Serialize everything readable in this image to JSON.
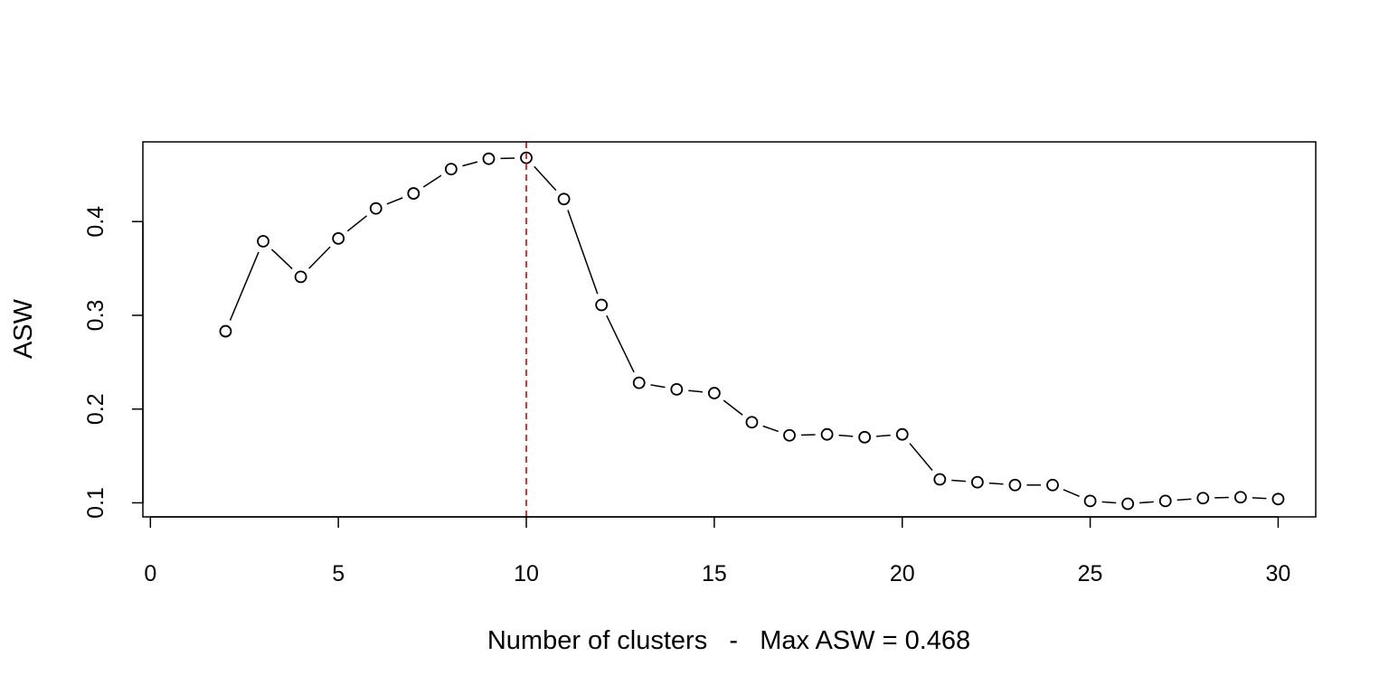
{
  "chart_data": {
    "type": "line",
    "title": "",
    "xlabel": "Number of clusters   -   Max ASW = 0.468",
    "ylabel": "ASW",
    "xlim": [
      -0.2,
      31.0
    ],
    "ylim": [
      0.085,
      0.485
    ],
    "x_ticks": [
      0,
      5,
      10,
      15,
      20,
      25,
      30
    ],
    "y_ticks": [
      0.1,
      0.2,
      0.3,
      0.4
    ],
    "x_tick_labels": [
      "0",
      "5",
      "10",
      "15",
      "20",
      "25",
      "30"
    ],
    "y_tick_labels": [
      "0.1",
      "0.2",
      "0.3",
      "0.4"
    ],
    "grid": false,
    "legend": "none",
    "series": [
      {
        "x": [
          2,
          3,
          4,
          5,
          6,
          7,
          8,
          9,
          10,
          11,
          12,
          13,
          14,
          15,
          16,
          17,
          18,
          19,
          20,
          21,
          22,
          23,
          24,
          25,
          26,
          27,
          28,
          29,
          30
        ],
        "values": [
          0.283,
          0.379,
          0.341,
          0.382,
          0.414,
          0.43,
          0.456,
          0.467,
          0.468,
          0.424,
          0.311,
          0.228,
          0.221,
          0.217,
          0.186,
          0.172,
          0.173,
          0.17,
          0.173,
          0.125,
          0.122,
          0.119,
          0.119,
          0.102,
          0.099,
          0.102,
          0.105,
          0.106,
          0.104
        ],
        "line_color": "#000000",
        "marker": "open-circle"
      }
    ],
    "annotations": [
      {
        "type": "vline",
        "x": 10,
        "color": "#e31a1c",
        "style": "dashed"
      }
    ]
  }
}
